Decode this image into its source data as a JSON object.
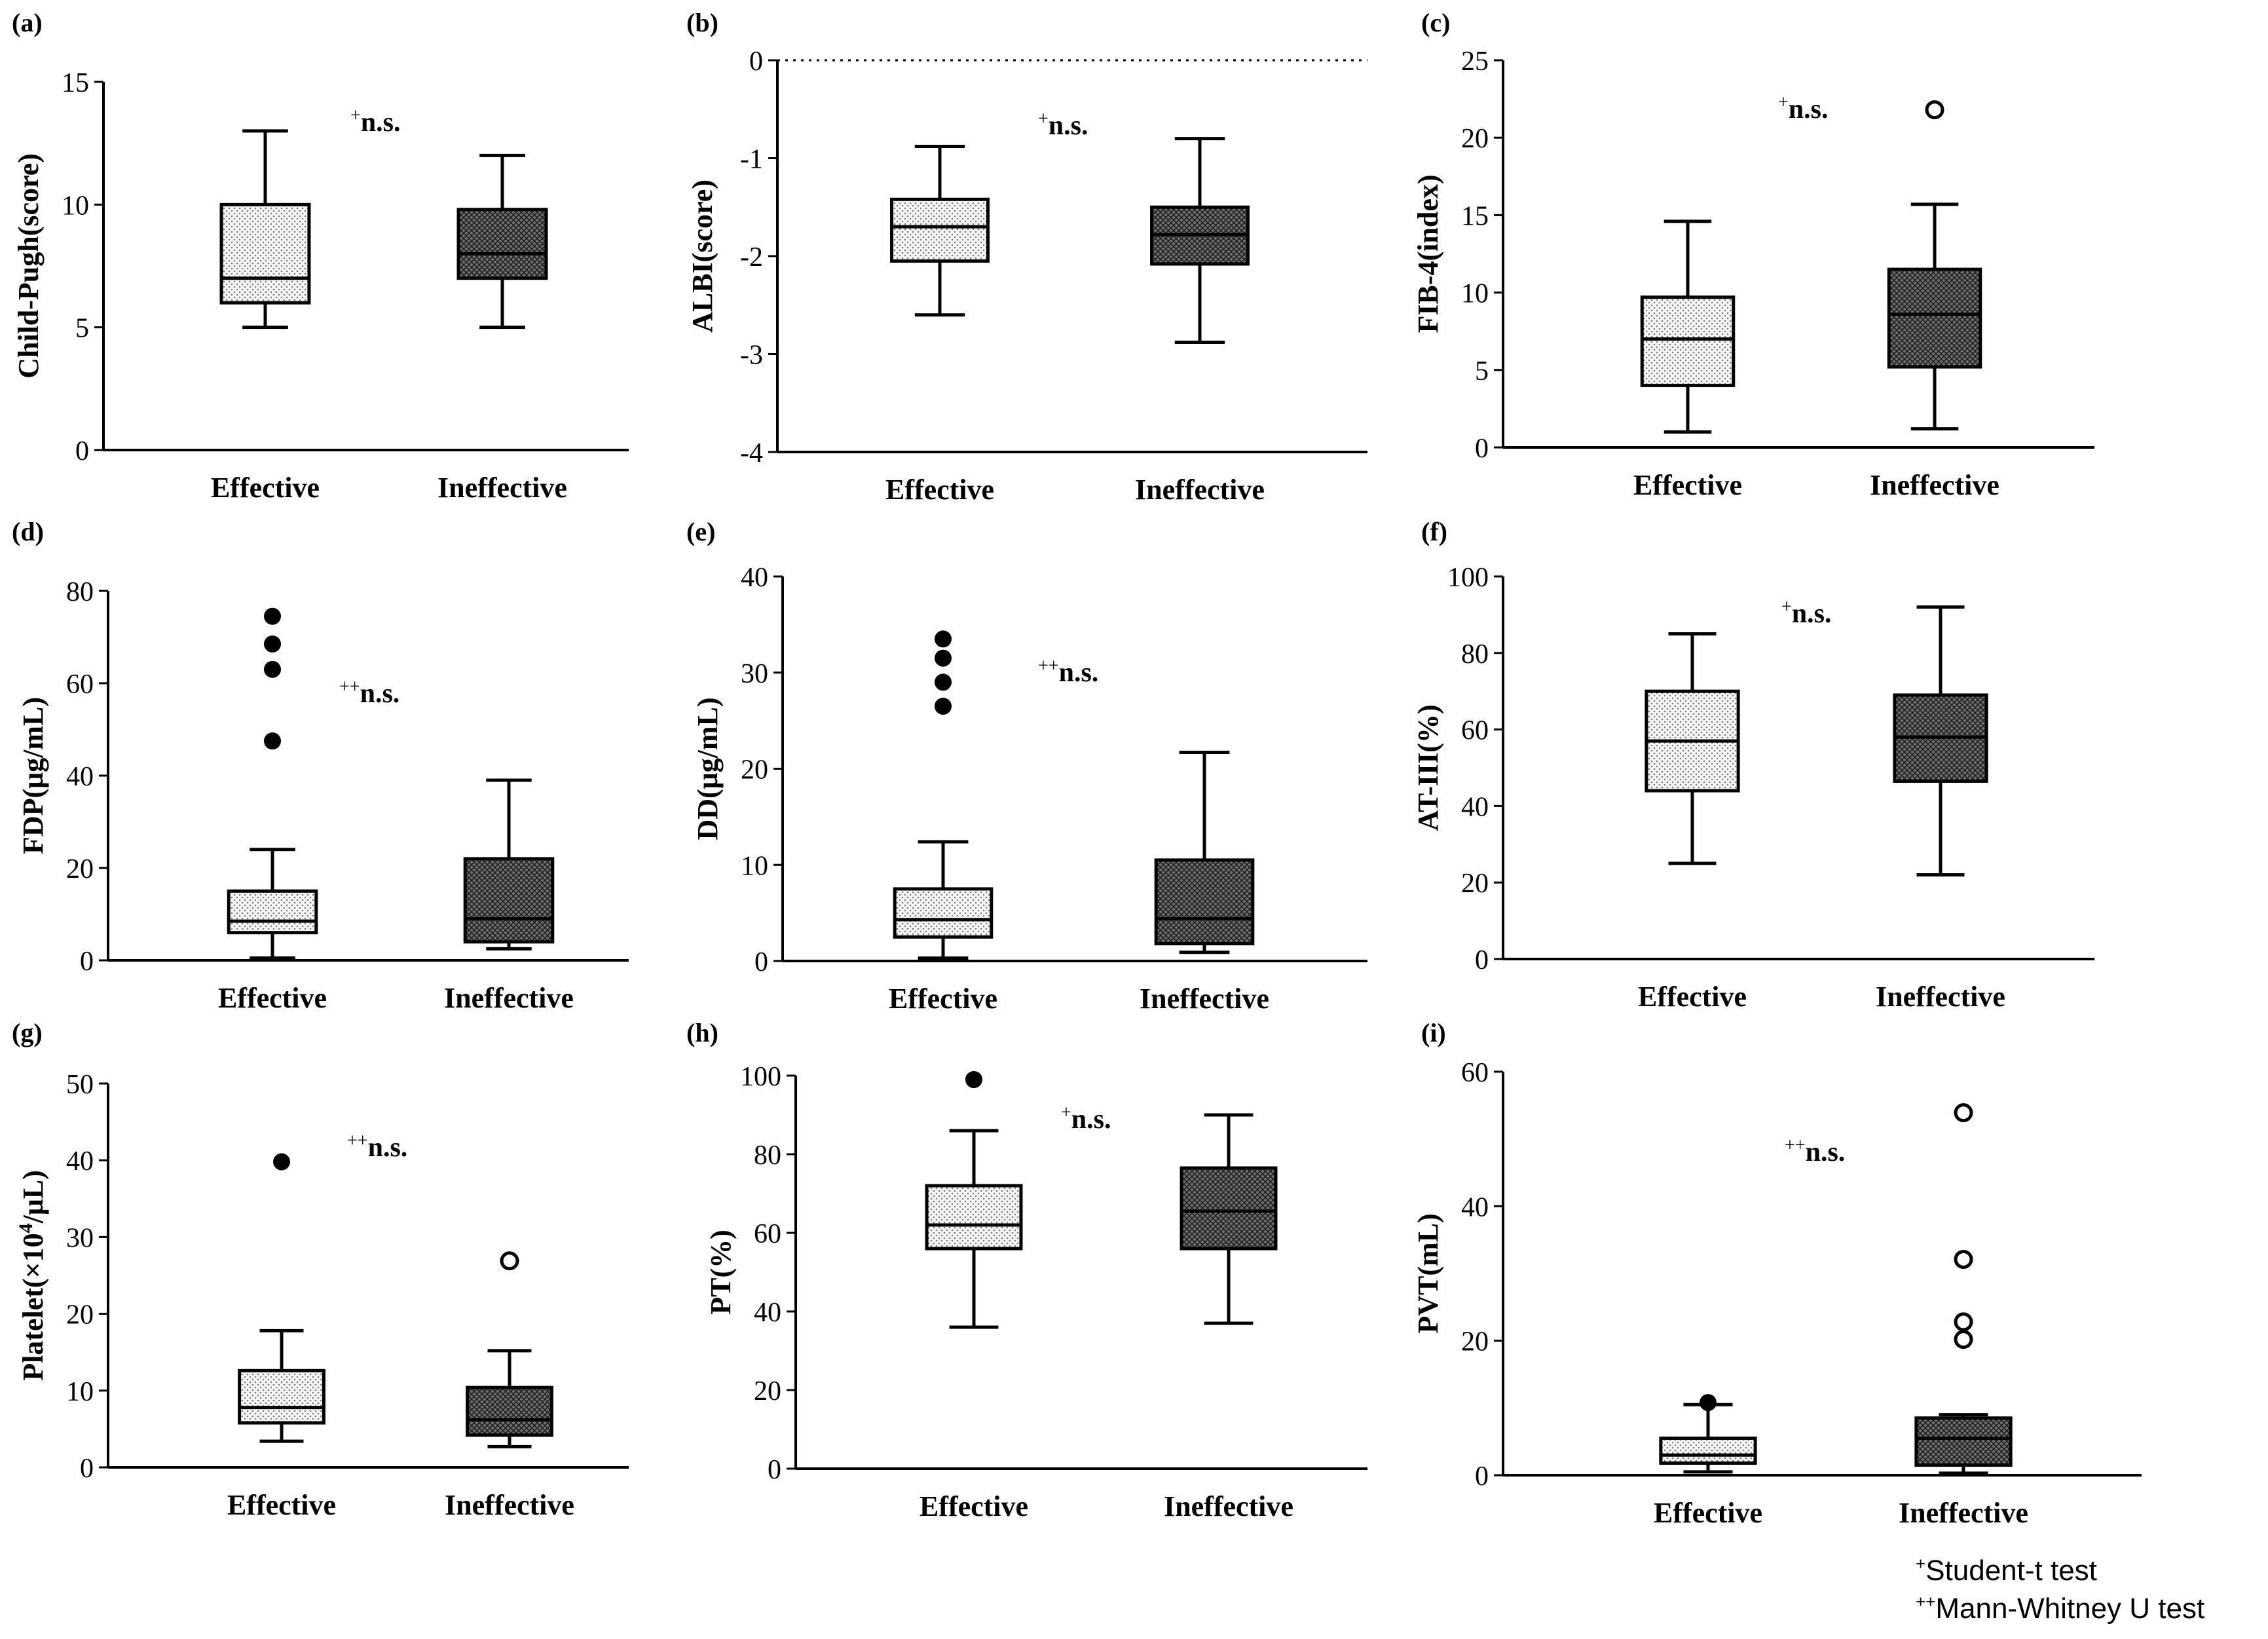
{
  "footnotes": {
    "mark1": "+",
    "text1": "Student-t test",
    "mark2": "++",
    "text2": "Mann-Whitney U test"
  },
  "chart_data": [
    {
      "panel": "(a)",
      "type": "box",
      "ylabel": "Child-Pugh(score)",
      "ylim": [
        0,
        15
      ],
      "yticks": [
        0,
        5,
        10,
        15
      ],
      "categories": [
        "Effective",
        "Ineffective"
      ],
      "sig_mark": "+",
      "sig_text": "n.s.",
      "boxes": [
        {
          "group": "Effective",
          "fill": "dots",
          "whisker_low": 5,
          "q1": 6,
          "median": 7,
          "q3": 10,
          "whisker_high": 13,
          "outliers": []
        },
        {
          "group": "Ineffective",
          "fill": "cross",
          "whisker_low": 5,
          "q1": 7,
          "median": 8,
          "q3": 9.8,
          "whisker_high": 12,
          "outliers": []
        }
      ]
    },
    {
      "panel": "(b)",
      "type": "box",
      "ylabel": "ALBI(score)",
      "ylim": [
        -4,
        0
      ],
      "yticks": [
        0,
        -1,
        -2,
        -3,
        -4
      ],
      "refline": 0,
      "categories": [
        "Effective",
        "Ineffective"
      ],
      "sig_mark": "+",
      "sig_text": "n.s.",
      "boxes": [
        {
          "group": "Effective",
          "fill": "dots",
          "whisker_low": -2.6,
          "q1": -2.05,
          "median": -1.7,
          "q3": -1.42,
          "whisker_high": -0.88,
          "outliers": []
        },
        {
          "group": "Ineffective",
          "fill": "cross",
          "whisker_low": -2.88,
          "q1": -2.08,
          "median": -1.78,
          "q3": -1.5,
          "whisker_high": -0.8,
          "outliers": []
        }
      ]
    },
    {
      "panel": "(c)",
      "type": "box",
      "ylabel": "FIB-4(index)",
      "ylim": [
        0,
        25
      ],
      "yticks": [
        0,
        5,
        10,
        15,
        20,
        25
      ],
      "categories": [
        "Effective",
        "Ineffective"
      ],
      "sig_mark": "+",
      "sig_text": "n.s.",
      "boxes": [
        {
          "group": "Effective",
          "fill": "dots",
          "whisker_low": 1,
          "q1": 4,
          "median": 7,
          "q3": 9.7,
          "whisker_high": 14.6,
          "outliers": []
        },
        {
          "group": "Ineffective",
          "fill": "cross",
          "whisker_low": 1.2,
          "q1": 5.2,
          "median": 8.6,
          "q3": 11.5,
          "whisker_high": 15.7,
          "outliers": [
            {
              "y": 21.8,
              "filled": false
            }
          ]
        }
      ]
    },
    {
      "panel": "(d)",
      "type": "box",
      "ylabel": "FDP(μg/mL)",
      "ylim": [
        0,
        80
      ],
      "yticks": [
        0,
        20,
        40,
        60,
        80
      ],
      "categories": [
        "Effective",
        "Ineffective"
      ],
      "sig_mark": "++",
      "sig_text": "n.s.",
      "boxes": [
        {
          "group": "Effective",
          "fill": "dots",
          "whisker_low": 0.5,
          "q1": 6,
          "median": 8.5,
          "q3": 15,
          "whisker_high": 24,
          "outliers": [
            {
              "y": 47.5,
              "filled": true
            },
            {
              "y": 63,
              "filled": true
            },
            {
              "y": 68.5,
              "filled": true
            },
            {
              "y": 74.5,
              "filled": true
            }
          ]
        },
        {
          "group": "Ineffective",
          "fill": "cross",
          "whisker_low": 2.5,
          "q1": 4,
          "median": 9,
          "q3": 22,
          "whisker_high": 39,
          "outliers": []
        }
      ]
    },
    {
      "panel": "(e)",
      "type": "box",
      "ylabel": "DD(μg/mL)",
      "ylim": [
        0,
        40
      ],
      "yticks": [
        0,
        10,
        20,
        30,
        40
      ],
      "categories": [
        "Effective",
        "Ineffective"
      ],
      "sig_mark": "++",
      "sig_text": "n.s.",
      "boxes": [
        {
          "group": "Effective",
          "fill": "dots",
          "whisker_low": 0.3,
          "q1": 2.5,
          "median": 4.3,
          "q3": 7.5,
          "whisker_high": 12.4,
          "outliers": [
            {
              "y": 26.5,
              "filled": true
            },
            {
              "y": 29,
              "filled": true
            },
            {
              "y": 31.5,
              "filled": true
            },
            {
              "y": 33.5,
              "filled": true
            }
          ]
        },
        {
          "group": "Ineffective",
          "fill": "cross",
          "whisker_low": 0.9,
          "q1": 1.8,
          "median": 4.4,
          "q3": 10.5,
          "whisker_high": 21.7,
          "outliers": []
        }
      ]
    },
    {
      "panel": "(f)",
      "type": "box",
      "ylabel": "AT-III(%)",
      "ylim": [
        0,
        100
      ],
      "yticks": [
        0,
        20,
        40,
        60,
        80,
        100
      ],
      "categories": [
        "Effective",
        "Ineffective"
      ],
      "sig_mark": "+",
      "sig_text": "n.s.",
      "boxes": [
        {
          "group": "Effective",
          "fill": "dots",
          "whisker_low": 25,
          "q1": 44,
          "median": 57,
          "q3": 70,
          "whisker_high": 85,
          "outliers": []
        },
        {
          "group": "Ineffective",
          "fill": "cross",
          "whisker_low": 22,
          "q1": 46.5,
          "median": 58,
          "q3": 69,
          "whisker_high": 92,
          "outliers": []
        }
      ]
    },
    {
      "panel": "(g)",
      "type": "box",
      "ylabel": "Platelet(×10",
      "ylabel_sup": "4",
      "ylabel_tail": "/μL)",
      "ylim": [
        0,
        50
      ],
      "yticks": [
        0,
        10,
        20,
        30,
        40,
        50
      ],
      "categories": [
        "Effective",
        "Ineffective"
      ],
      "sig_mark": "++",
      "sig_text": "n.s.",
      "boxes": [
        {
          "group": "Effective",
          "fill": "dots",
          "whisker_low": 3.4,
          "q1": 5.8,
          "median": 7.8,
          "q3": 12.6,
          "whisker_high": 17.8,
          "outliers": [
            {
              "y": 39.8,
              "filled": true
            }
          ]
        },
        {
          "group": "Ineffective",
          "fill": "cross",
          "whisker_low": 2.7,
          "q1": 4.2,
          "median": 6.2,
          "q3": 10.4,
          "whisker_high": 15.2,
          "outliers": [
            {
              "y": 26.9,
              "filled": false
            }
          ]
        }
      ]
    },
    {
      "panel": "(h)",
      "type": "box",
      "ylabel": "PT(%)",
      "ylim": [
        0,
        100
      ],
      "yticks": [
        0,
        20,
        40,
        60,
        80,
        100
      ],
      "categories": [
        "Effective",
        "Ineffective"
      ],
      "sig_mark": "+",
      "sig_text": "n.s.",
      "boxes": [
        {
          "group": "Effective",
          "fill": "dots",
          "whisker_low": 36,
          "q1": 56,
          "median": 62,
          "q3": 72,
          "whisker_high": 86,
          "outliers": [
            {
              "y": 99,
              "filled": true
            }
          ]
        },
        {
          "group": "Ineffective",
          "fill": "cross",
          "whisker_low": 37,
          "q1": 56,
          "median": 65.5,
          "q3": 76.5,
          "whisker_high": 90,
          "outliers": []
        }
      ]
    },
    {
      "panel": "(i)",
      "type": "box",
      "ylabel": "PVT(mL)",
      "ylim": [
        0,
        60
      ],
      "yticks": [
        0,
        20,
        40,
        60
      ],
      "categories": [
        "Effective",
        "Ineffective"
      ],
      "sig_mark": "++",
      "sig_text": "n.s.",
      "boxes": [
        {
          "group": "Effective",
          "fill": "dots",
          "whisker_low": 0.5,
          "q1": 1.8,
          "median": 3,
          "q3": 5.5,
          "whisker_high": 10.5,
          "outliers": [
            {
              "y": 10.8,
              "filled": true
            }
          ]
        },
        {
          "group": "Ineffective",
          "fill": "cross",
          "whisker_low": 0.3,
          "q1": 1.5,
          "median": 5.5,
          "q3": 8.5,
          "whisker_high": 9,
          "outliers": [
            {
              "y": 20.2,
              "filled": false
            },
            {
              "y": 22.8,
              "filled": false
            },
            {
              "y": 32.1,
              "filled": false
            },
            {
              "y": 53.9,
              "filled": false
            }
          ]
        }
      ]
    }
  ]
}
